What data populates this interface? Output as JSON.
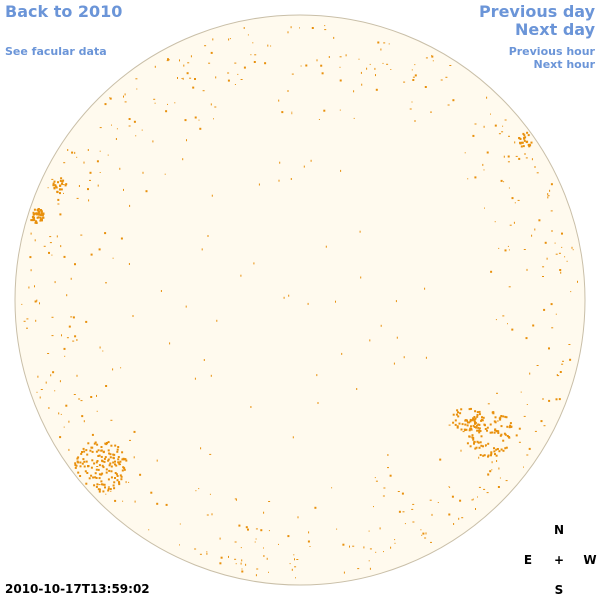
{
  "nav": {
    "back_label": "Back to 2010",
    "facular_label": "See facular data",
    "prev_day_label": "Previous day",
    "next_day_label": "Next day",
    "prev_hour_label": "Previous hour",
    "next_hour_label": "Next hour"
  },
  "timestamp": "2010-10-17T13:59:02",
  "compass": {
    "north": "N",
    "east": "E",
    "center": "+",
    "west": "W",
    "south": "S"
  },
  "colors": {
    "link": "#6b95d8",
    "disk_fill": "#fffaee",
    "disk_edge": "#c9bfa8",
    "feature": "#e8900c"
  }
}
